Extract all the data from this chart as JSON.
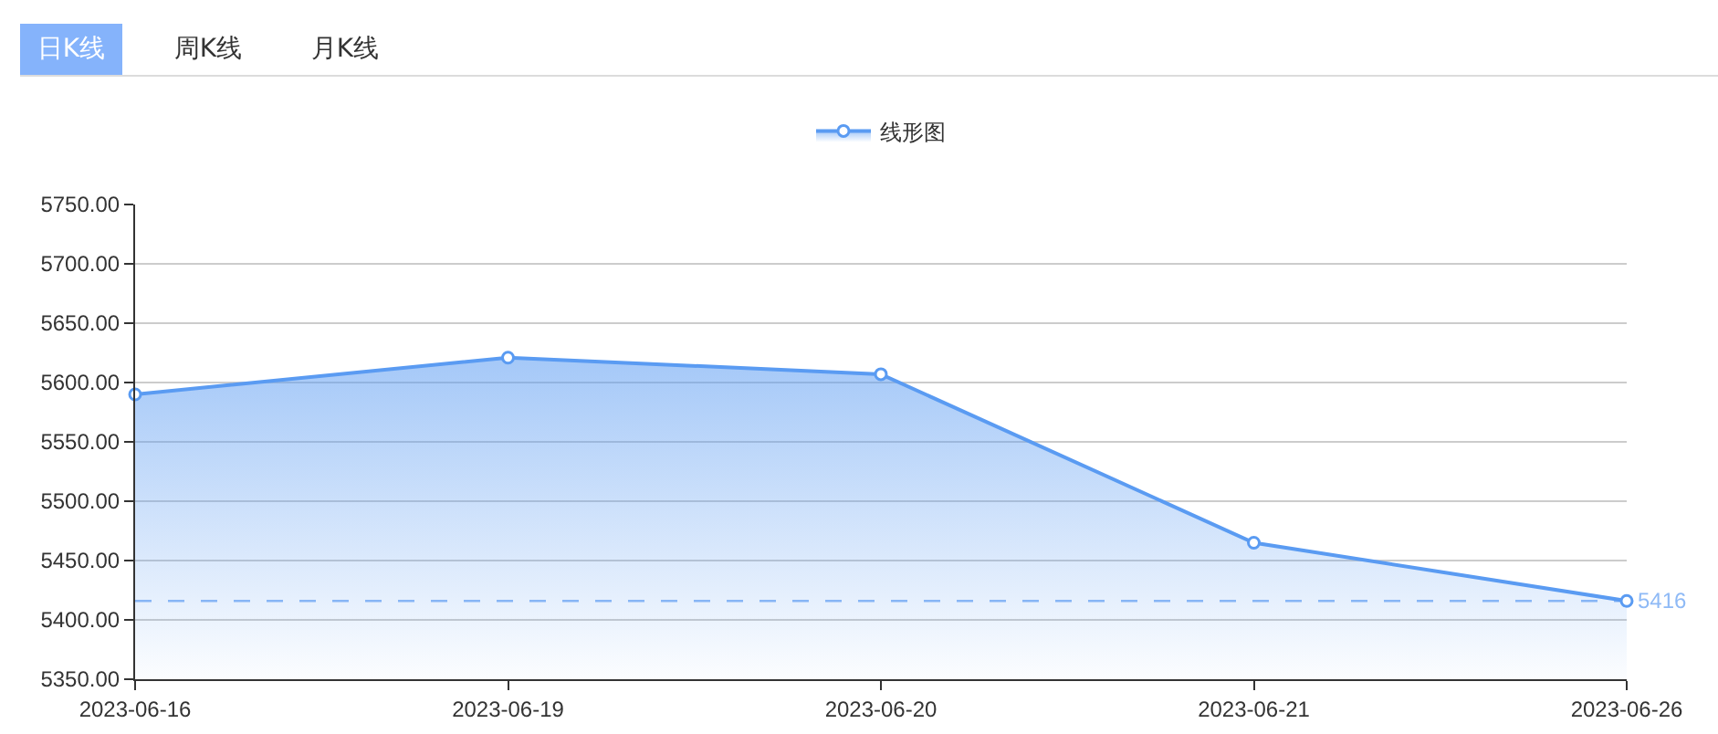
{
  "chart_data": {
    "type": "area",
    "categories": [
      "2023-06-16",
      "2023-06-19",
      "2023-06-20",
      "2023-06-21",
      "2023-06-26"
    ],
    "series": [
      {
        "name": "线形图",
        "color": "#5a9bf2",
        "values": [
          5590,
          5621,
          5607,
          5465,
          5416
        ]
      }
    ],
    "ylim": [
      5350,
      5750
    ],
    "yticks": [
      {
        "value": 5350,
        "label": "5350.00"
      },
      {
        "value": 5400,
        "label": "5400.00"
      },
      {
        "value": 5450,
        "label": "5450.00"
      },
      {
        "value": 5500,
        "label": "5500.00"
      },
      {
        "value": 5550,
        "label": "5550.00"
      },
      {
        "value": 5600,
        "label": "5600.00"
      },
      {
        "value": 5650,
        "label": "5650.00"
      },
      {
        "value": 5700,
        "label": "5700.00"
      },
      {
        "value": 5750,
        "label": "5750.00"
      }
    ],
    "grid": "y",
    "legend": "top",
    "marker": "circle",
    "ref_lines": [
      {
        "axis": "y",
        "value": 5416,
        "label": "5416",
        "color": "#8fbaf6",
        "line_style": "dashed"
      }
    ],
    "annotations": [
      "日K线",
      "周K线",
      "月K线"
    ]
  }
}
